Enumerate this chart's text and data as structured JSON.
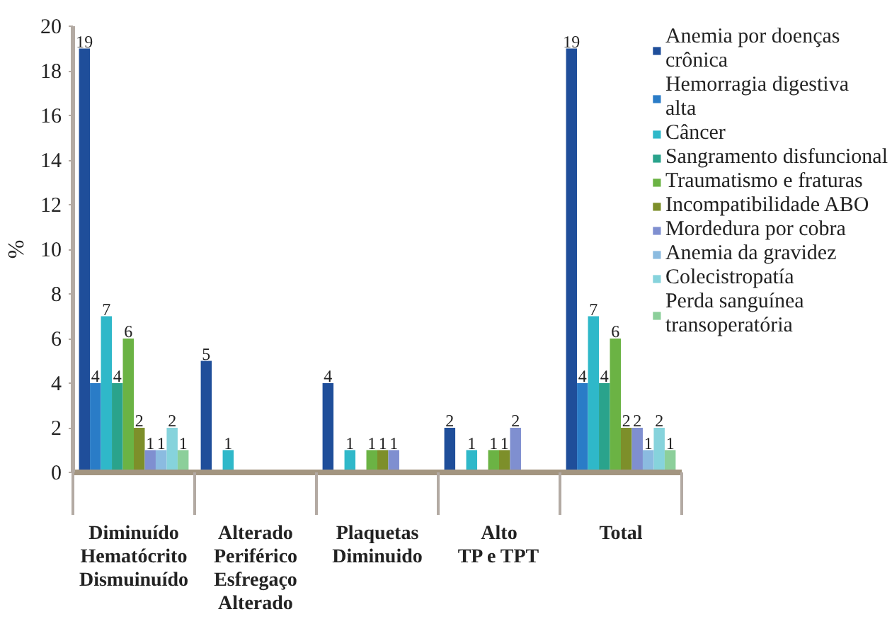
{
  "chart_data": {
    "type": "bar",
    "ylabel": "%",
    "categories": [
      "Diminuído\nHematócrito Dismuinuído",
      "Alterado\nPeriférico Esfregaço Alterado",
      "Plaquetas\nDiminuido",
      "Alto\nTP e TPT",
      "Total"
    ],
    "ylim": [
      0,
      20
    ],
    "yticks": [
      0,
      2,
      4,
      6,
      8,
      10,
      12,
      14,
      16,
      18,
      20
    ],
    "grid": false,
    "legend": "top right",
    "data_labels": true,
    "series": [
      {
        "name": "Anemia por doenças crônica",
        "color": "#1f4e9a",
        "values": [
          19,
          5,
          4,
          2,
          19
        ]
      },
      {
        "name": "Hemorragia digestiva alta",
        "color": "#2a7cc7",
        "values": [
          4,
          null,
          null,
          null,
          4
        ]
      },
      {
        "name": "Câncer",
        "color": "#2fb8c9",
        "values": [
          7,
          1,
          1,
          1,
          7
        ]
      },
      {
        "name": "Sangramento disfuncional",
        "color": "#2aa38c",
        "values": [
          4,
          null,
          null,
          null,
          4
        ]
      },
      {
        "name": "Traumatismo e fraturas",
        "color": "#6bb344",
        "values": [
          6,
          null,
          1,
          1,
          6
        ]
      },
      {
        "name": "Incompatibilidade ABO",
        "color": "#7d8f2a",
        "values": [
          2,
          null,
          1,
          1,
          2
        ]
      },
      {
        "name": "Mordedura por cobra",
        "color": "#7f8fd0",
        "values": [
          1,
          null,
          1,
          2,
          2
        ]
      },
      {
        "name": "Anemia da gravidez",
        "color": "#8bbbe0",
        "values": [
          1,
          null,
          null,
          null,
          1
        ]
      },
      {
        "name": "Colecistropatía",
        "color": "#86d3dc",
        "values": [
          2,
          null,
          null,
          null,
          2
        ]
      },
      {
        "name": "Perda sanguínea transoperatória",
        "color": "#8ccf9a",
        "values": [
          1,
          null,
          null,
          null,
          1
        ]
      }
    ]
  }
}
